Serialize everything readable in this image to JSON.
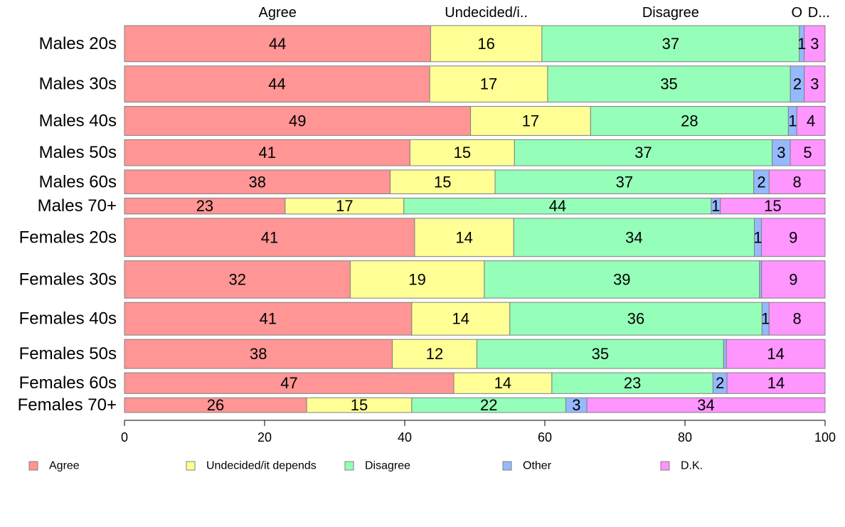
{
  "chart_data": {
    "type": "bar",
    "orientation": "horizontal",
    "stacked": true,
    "title": "",
    "xlabel": "",
    "ylabel": "",
    "xlim": [
      0,
      100
    ],
    "x_ticks": [
      "0",
      "20",
      "40",
      "60",
      "80",
      "100"
    ],
    "grid": false,
    "legend_position": "bottom",
    "column_headers": [
      "Agree",
      "Undecided/i..",
      "Disagree",
      "O",
      "D..."
    ],
    "categories": [
      "Males 20s",
      "Males 30s",
      "Males 40s",
      "Males 50s",
      "Males 60s",
      "Males 70+",
      "Females 20s",
      "Females 30s",
      "Females 40s",
      "Females 50s",
      "Females 60s",
      "Females 70+"
    ],
    "group_weights": [
      1.18,
      1.18,
      0.95,
      0.85,
      0.78,
      0.52,
      1.25,
      1.22,
      1.07,
      0.95,
      0.68,
      0.48
    ],
    "series": [
      {
        "name": "Agree",
        "color": "#ff9595",
        "values": [
          44,
          44,
          49,
          41,
          38,
          23,
          41,
          32,
          41,
          38,
          47,
          26
        ],
        "labels": [
          "44",
          "44",
          "49",
          "41",
          "38",
          "23",
          "41",
          "32",
          "41",
          "38",
          "47",
          "26"
        ]
      },
      {
        "name": "Undecided/it depends",
        "color": "#ffff95",
        "values": [
          16,
          17,
          17,
          15,
          15,
          17,
          14,
          19,
          14,
          12,
          14,
          15
        ],
        "labels": [
          "16",
          "17",
          "17",
          "15",
          "15",
          "17",
          "14",
          "19",
          "14",
          "12",
          "14",
          "15"
        ]
      },
      {
        "name": "Disagree",
        "color": "#95ffb9",
        "values": [
          37,
          35,
          28,
          37,
          37,
          44,
          34,
          39,
          36,
          35,
          23,
          22
        ],
        "labels": [
          "37",
          "35",
          "28",
          "37",
          "37",
          "44",
          "34",
          "39",
          "36",
          "35",
          "23",
          "22"
        ]
      },
      {
        "name": "Other",
        "color": "#95b9ff",
        "values": [
          0.7,
          2,
          1.2,
          2.6,
          2.2,
          1.3,
          1,
          0.3,
          1,
          0.4,
          2,
          3
        ],
        "labels": [
          "1",
          "2",
          "1",
          "3",
          "2",
          "1",
          "1",
          "",
          "1",
          "",
          "2",
          "3"
        ]
      },
      {
        "name": "D.K.",
        "color": "#ff95ff",
        "values": [
          3,
          3,
          4,
          5,
          8,
          15,
          9,
          9,
          8,
          14,
          14,
          34
        ],
        "labels": [
          "3",
          "3",
          "4",
          "5",
          "8",
          "15",
          "9",
          "9",
          "8",
          "14",
          "14",
          "34"
        ]
      }
    ]
  }
}
